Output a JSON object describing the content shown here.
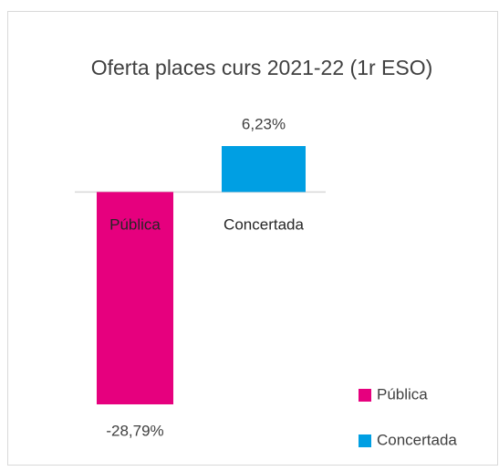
{
  "chart_data": {
    "type": "bar",
    "title": "Oferta places curs 2021-22 (1r ESO)",
    "categories": [
      "Pública",
      "Concertada"
    ],
    "values": [
      -28.79,
      6.23
    ],
    "value_labels": [
      "-28,79%",
      "6,23%"
    ],
    "colors": [
      "#e6007e",
      "#009fe3"
    ],
    "legend": "bottom-right"
  }
}
